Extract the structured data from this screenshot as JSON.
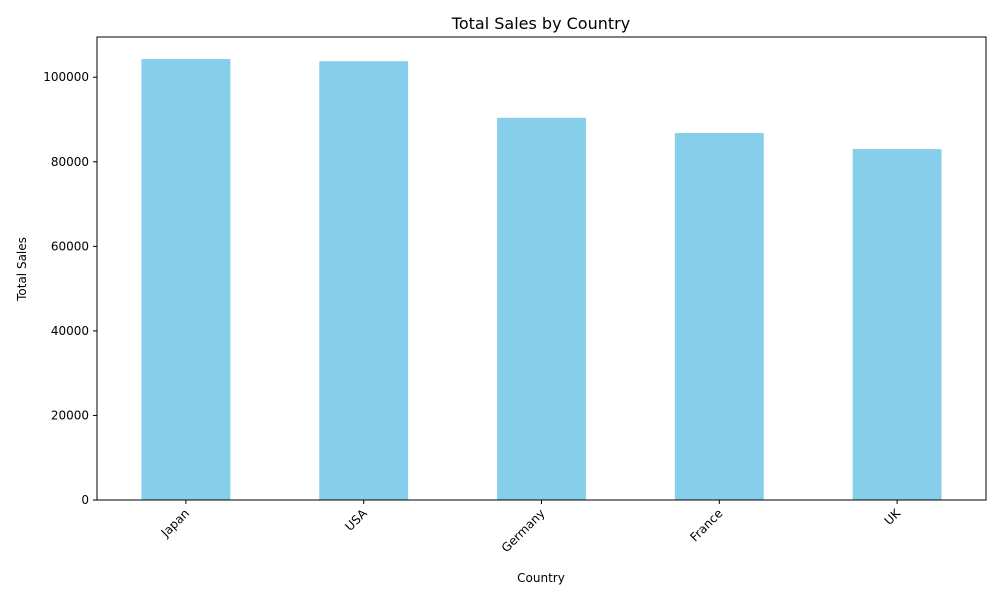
{
  "chart_data": {
    "type": "bar",
    "title": "Total Sales by Country",
    "xlabel": "Country",
    "ylabel": "Total Sales",
    "categories": [
      "Japan",
      "USA",
      "Germany",
      "France",
      "UK"
    ],
    "values": [
      104300,
      103800,
      90400,
      86800,
      83000
    ],
    "ylim": [
      0,
      109515
    ],
    "yticks": [
      0,
      20000,
      40000,
      60000,
      80000,
      100000
    ],
    "bar_color": "#87CEEB",
    "grid": false,
    "legend": "none",
    "xtick_rotation": 45
  }
}
